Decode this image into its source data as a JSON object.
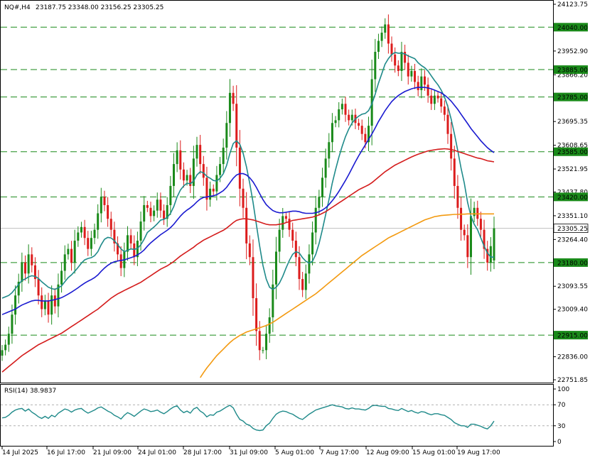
{
  "header": {
    "symbol": "NQ#,H4",
    "ohlc": "23187.75 23348.00 23156.25 23305.25"
  },
  "rsi_header": "RSI(14) 38.9837",
  "chart_data": [
    {
      "type": "candlestick",
      "title": "NQ#,H4",
      "ylim": [
        22751.85,
        24123.75
      ],
      "price_ticks": [
        "24123.75",
        "24040.00",
        "23952.90",
        "23885.00",
        "23866.20",
        "23785.00",
        "23695.35",
        "23608.65",
        "23585.00",
        "23521.95",
        "23437.80",
        "23420.00",
        "23351.10",
        "23305.25",
        "23264.40",
        "23180.00",
        "23093.55",
        "23009.40",
        "22915.00",
        "22836.00",
        "22751.85"
      ],
      "tick_values": [
        24123.75,
        24040.0,
        23952.9,
        23885.0,
        23866.2,
        23785.0,
        23695.35,
        23608.65,
        23585.0,
        23521.95,
        23437.8,
        23420.0,
        23351.1,
        23305.25,
        23264.4,
        23180.0,
        23093.55,
        23009.4,
        22915.0,
        22836.0,
        22751.85
      ],
      "x_labels": [
        "14 Jul 2025",
        "16 Jul 17:00",
        "21 Jul 09:00",
        "24 Jul 01:00",
        "28 Jul 17:00",
        "31 Jul 09:00",
        "5 Aug 01:00",
        "7 Aug 17:00",
        "12 Aug 09:00",
        "15 Aug 01:00",
        "19 Aug 17:00"
      ],
      "horizontal_levels": [
        {
          "label": "24040.00",
          "value": 24040.0
        },
        {
          "label": "23885.00",
          "value": 23885.0
        },
        {
          "label": "23785.00",
          "value": 23785.0
        },
        {
          "label": "23585.00",
          "value": 23585.0
        },
        {
          "label": "23420.00",
          "value": 23420.0
        },
        {
          "label": "23180.00",
          "value": 23180.0
        },
        {
          "label": "22915.00",
          "value": 22915.0
        }
      ],
      "current_price": {
        "label": "23305.25",
        "value": 23305.25
      },
      "last_candle": {
        "open": 23187.75,
        "high": 23348.0,
        "low": 23156.25,
        "close": 23305.25
      },
      "closes": [
        22860,
        22880,
        22920,
        22990,
        23060,
        23110,
        23180,
        23140,
        23210,
        23170,
        23120,
        23060,
        23010,
        23040,
        22990,
        23060,
        23020,
        23100,
        23150,
        23210,
        23230,
        23180,
        23260,
        23290,
        23310,
        23270,
        23230,
        23270,
        23300,
        23360,
        23420,
        23390,
        23340,
        23300,
        23250,
        23210,
        23160,
        23220,
        23280,
        23250,
        23200,
        23260,
        23330,
        23390,
        23380,
        23350,
        23370,
        23410,
        23370,
        23340,
        23390,
        23460,
        23540,
        23590,
        23520,
        23480,
        23500,
        23460,
        23560,
        23610,
        23540,
        23490,
        23410,
        23450,
        23440,
        23500,
        23540,
        23600,
        23690,
        23800,
        23760,
        23600,
        23450,
        23380,
        23250,
        23200,
        23050,
        22930,
        22860,
        22860,
        22920,
        22980,
        23100,
        23220,
        23300,
        23350,
        23340,
        23300,
        23260,
        23200,
        23120,
        23080,
        23140,
        23210,
        23290,
        23380,
        23420,
        23490,
        23560,
        23620,
        23690,
        23700,
        23740,
        23760,
        23720,
        23700,
        23720,
        23690,
        23680,
        23650,
        23620,
        23680,
        23850,
        23950,
        23990,
        24020,
        24050,
        23980,
        23940,
        23900,
        23880,
        23950,
        23910,
        23860,
        23880,
        23840,
        23810,
        23860,
        23830,
        23790,
        23760,
        23790,
        23780,
        23750,
        23720,
        23650,
        23560,
        23460,
        23380,
        23300,
        23280,
        23200,
        23350,
        23380,
        23340,
        23300,
        23230,
        23180,
        23240,
        23305.25
      ],
      "series": [
        {
          "name": "MA1",
          "color": "#1f8a8a",
          "values": [
            23050,
            23055,
            23060,
            23070,
            23085,
            23100,
            23115,
            23120,
            23128,
            23132,
            23130,
            23122,
            23110,
            23100,
            23090,
            23085,
            23082,
            23088,
            23095,
            23110,
            23125,
            23135,
            23148,
            23162,
            23178,
            23190,
            23195,
            23198,
            23205,
            23220,
            23245,
            23265,
            23272,
            23270,
            23260,
            23245,
            23230,
            23220,
            23225,
            23230,
            23228,
            23232,
            23245,
            23265,
            23290,
            23300,
            23310,
            23322,
            23335,
            23338,
            23345,
            23360,
            23385,
            23420,
            23445,
            23460,
            23470,
            23468,
            23478,
            23500,
            23512,
            23508,
            23495,
            23488,
            23480,
            23478,
            23488,
            23505,
            23535,
            23580,
            23615,
            23625,
            23612,
            23580,
            23530,
            23470,
            23400,
            23320,
            23240,
            23170,
            23120,
            23090,
            23082,
            23090,
            23105,
            23130,
            23160,
            23188,
            23210,
            23220,
            23215,
            23198,
            23185,
            23178,
            23185,
            23210,
            23250,
            23300,
            23355,
            23410,
            23470,
            23520,
            23565,
            23605,
            23640,
            23668,
            23690,
            23705,
            23715,
            23722,
            23725,
            23735,
            23760,
            23795,
            23835,
            23870,
            23905,
            23925,
            23940,
            23948,
            23945,
            23945,
            23942,
            23935,
            23930,
            23925,
            23910,
            23900,
            23892,
            23880,
            23862,
            23845,
            23830,
            23810,
            23785,
            23750,
            23705,
            23650,
            23590,
            23525,
            23470,
            23400,
            23350,
            23320,
            23300,
            23270,
            23240,
            23215,
            23200,
            23200
          ]
        },
        {
          "name": "MA2",
          "color": "#1a1ad0",
          "values": [
            22990,
            22995,
            23000,
            23005,
            23010,
            23018,
            23025,
            23030,
            23035,
            23040,
            23042,
            23042,
            23040,
            23040,
            23040,
            23042,
            23045,
            23048,
            23052,
            23058,
            23065,
            23072,
            23080,
            23088,
            23097,
            23105,
            23112,
            23118,
            23125,
            23135,
            23148,
            23160,
            23170,
            23178,
            23183,
            23186,
            23188,
            23190,
            23194,
            23198,
            23202,
            23208,
            23216,
            23226,
            23240,
            23252,
            23262,
            23272,
            23282,
            23290,
            23298,
            23308,
            23320,
            23335,
            23350,
            23362,
            23372,
            23380,
            23390,
            23402,
            23412,
            23418,
            23420,
            23422,
            23424,
            23428,
            23435,
            23443,
            23455,
            23472,
            23488,
            23500,
            23505,
            23505,
            23500,
            23490,
            23475,
            23455,
            23432,
            23410,
            23392,
            23380,
            23370,
            23365,
            23362,
            23362,
            23364,
            23366,
            23368,
            23368,
            23366,
            23362,
            23360,
            23360,
            23360,
            23362,
            23366,
            23372,
            23380,
            23392,
            23406,
            23422,
            23440,
            23460,
            23480,
            23502,
            23525,
            23548,
            23570,
            23590,
            23610,
            23630,
            23650,
            23672,
            23695,
            23715,
            23735,
            23752,
            23768,
            23780,
            23790,
            23798,
            23805,
            23810,
            23815,
            23818,
            23820,
            23820,
            23820,
            23818,
            23815,
            23810,
            23805,
            23800,
            23792,
            23782,
            23770,
            23755,
            23740,
            23722,
            23705,
            23688,
            23670,
            23655,
            23640,
            23625,
            23612,
            23600,
            23590,
            23582
          ]
        },
        {
          "name": "MA3",
          "color": "#d41c1c",
          "values": [
            22780,
            22790,
            22800,
            22810,
            22820,
            22830,
            22840,
            22848,
            22856,
            22864,
            22872,
            22880,
            22886,
            22892,
            22898,
            22904,
            22910,
            22916,
            22922,
            22930,
            22938,
            22946,
            22954,
            22962,
            22970,
            22978,
            22986,
            22994,
            23002,
            23010,
            23020,
            23030,
            23040,
            23050,
            23058,
            23066,
            23072,
            23078,
            23084,
            23090,
            23096,
            23102,
            23108,
            23116,
            23124,
            23132,
            23140,
            23148,
            23156,
            23162,
            23168,
            23176,
            23184,
            23194,
            23204,
            23212,
            23220,
            23228,
            23236,
            23246,
            23254,
            23262,
            23268,
            23274,
            23280,
            23286,
            23292,
            23298,
            23306,
            23316,
            23326,
            23334,
            23338,
            23340,
            23340,
            23338,
            23336,
            23332,
            23328,
            23324,
            23320,
            23318,
            23318,
            23318,
            23320,
            23322,
            23326,
            23330,
            23334,
            23336,
            23338,
            23340,
            23342,
            23344,
            23346,
            23350,
            23354,
            23360,
            23366,
            23374,
            23382,
            23390,
            23398,
            23406,
            23414,
            23422,
            23430,
            23438,
            23446,
            23452,
            23458,
            23464,
            23472,
            23482,
            23492,
            23502,
            23512,
            23520,
            23528,
            23536,
            23542,
            23548,
            23554,
            23560,
            23566,
            23571,
            23576,
            23580,
            23584,
            23588,
            23590,
            23592,
            23594,
            23595,
            23596,
            23595,
            23593,
            23590,
            23586,
            23582,
            23578,
            23574,
            23570,
            23566,
            23562,
            23560,
            23556,
            23552,
            23550,
            23548
          ]
        },
        {
          "name": "MA4",
          "color": "#f39a10",
          "values": [
            null,
            null,
            null,
            null,
            null,
            null,
            null,
            null,
            null,
            null,
            null,
            null,
            null,
            null,
            null,
            null,
            null,
            null,
            null,
            null,
            null,
            null,
            null,
            null,
            null,
            null,
            null,
            null,
            null,
            null,
            null,
            null,
            null,
            null,
            null,
            null,
            null,
            null,
            null,
            null,
            null,
            null,
            null,
            null,
            null,
            null,
            null,
            null,
            null,
            null,
            null,
            null,
            null,
            null,
            null,
            null,
            null,
            null,
            null,
            22740,
            22760,
            22778,
            22795,
            22810,
            22825,
            22840,
            22852,
            22864,
            22876,
            22888,
            22898,
            22906,
            22914,
            22920,
            22926,
            22930,
            22934,
            22938,
            22942,
            22946,
            22950,
            22956,
            22962,
            22970,
            22978,
            22986,
            22994,
            23002,
            23010,
            23018,
            23026,
            23034,
            23042,
            23050,
            23058,
            23066,
            23076,
            23086,
            23096,
            23106,
            23116,
            23126,
            23136,
            23146,
            23156,
            23166,
            23176,
            23186,
            23196,
            23206,
            23214,
            23222,
            23230,
            23238,
            23246,
            23254,
            23262,
            23270,
            23276,
            23282,
            23288,
            23294,
            23300,
            23306,
            23312,
            23318,
            23324,
            23330,
            23336,
            23340,
            23344,
            23348,
            23350,
            23352,
            23353,
            23354,
            23355,
            23356,
            23356,
            23357,
            23357,
            23358,
            23358,
            23358,
            23358,
            23358,
            23358,
            23358,
            23358,
            23358
          ]
        }
      ]
    },
    {
      "type": "line",
      "title": "RSI(14) 38.9837",
      "ylim": [
        0,
        100
      ],
      "y_ticks": [
        "100",
        "70",
        "30",
        "0"
      ],
      "y_tick_values": [
        100,
        70,
        30,
        0
      ],
      "levels": [
        70,
        30
      ],
      "series": [
        {
          "name": "RSI(14)",
          "color": "#1f8a8a",
          "values": [
            45,
            46,
            50,
            56,
            60,
            62,
            63,
            58,
            62,
            56,
            52,
            47,
            44,
            48,
            44,
            50,
            47,
            54,
            58,
            62,
            60,
            56,
            60,
            62,
            63,
            58,
            54,
            57,
            60,
            64,
            66,
            62,
            58,
            55,
            50,
            47,
            43,
            50,
            55,
            52,
            48,
            53,
            58,
            62,
            60,
            57,
            58,
            60,
            56,
            53,
            57,
            62,
            66,
            68,
            60,
            55,
            58,
            54,
            62,
            65,
            58,
            54,
            47,
            51,
            50,
            56,
            58,
            62,
            66,
            69,
            64,
            52,
            42,
            39,
            33,
            31,
            25,
            22,
            21,
            22,
            30,
            35,
            44,
            52,
            56,
            58,
            57,
            54,
            52,
            48,
            44,
            42,
            47,
            52,
            56,
            60,
            62,
            64,
            66,
            68,
            70,
            68,
            67,
            66,
            63,
            62,
            64,
            62,
            62,
            61,
            60,
            63,
            68,
            69,
            68,
            67,
            67,
            63,
            62,
            60,
            59,
            63,
            60,
            57,
            59,
            56,
            54,
            57,
            56,
            53,
            51,
            53,
            53,
            51,
            50,
            46,
            42,
            36,
            33,
            30,
            30,
            27,
            33,
            33,
            31,
            29,
            26,
            24,
            30,
            38.98
          ]
        }
      ]
    }
  ]
}
